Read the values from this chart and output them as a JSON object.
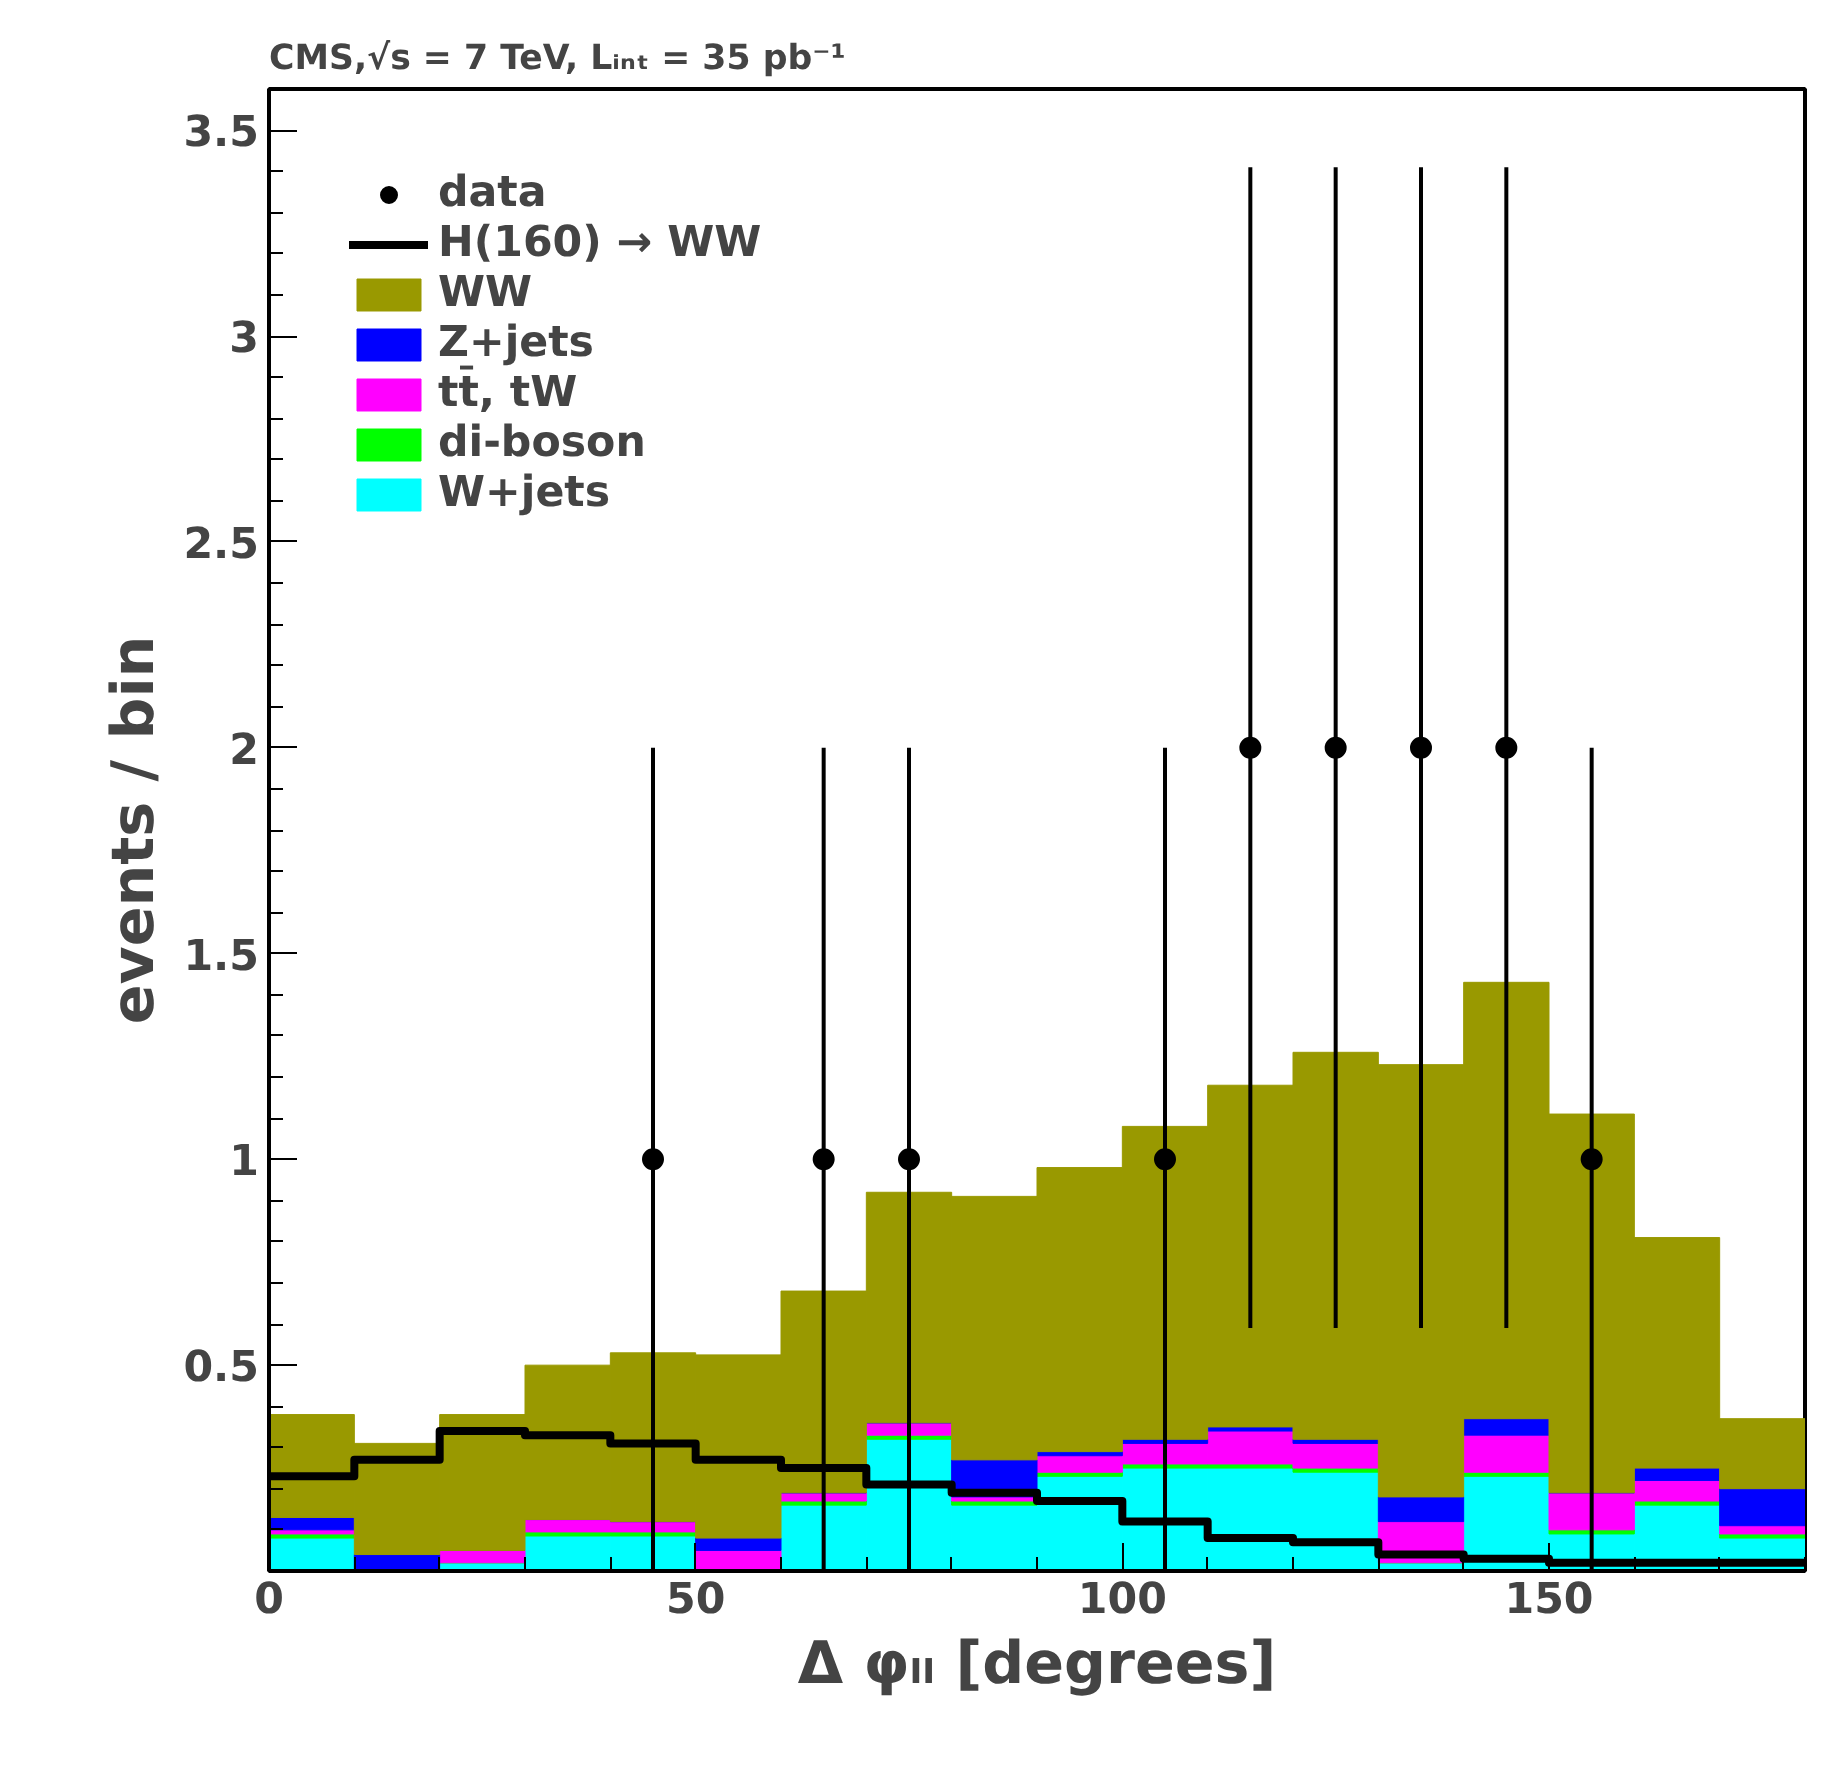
{
  "chart_data": {
    "type": "bar",
    "title": "CMS,√s = 7 TeV, Lᵢₙₜ = 35 pb⁻¹",
    "xlabel": "Δ φₗₗ [degrees]",
    "ylabel": "events / bin",
    "x": [
      5,
      15,
      25,
      35,
      45,
      55,
      65,
      75,
      85,
      95,
      105,
      115,
      125,
      135,
      145,
      155,
      165,
      175
    ],
    "stacked": true,
    "series": [
      {
        "name": "W+jets",
        "color": "#00ffff",
        "values": [
          0.08,
          null,
          0.02,
          0.085,
          0.085,
          0,
          0.16,
          0.32,
          0.16,
          0.23,
          0.25,
          0.25,
          0.24,
          0.02,
          0.23,
          0.09,
          0.16,
          0.08
        ]
      },
      {
        "name": "di-boson",
        "color": "#00ff00",
        "values": [
          0.01,
          0,
          0,
          0.01,
          0.01,
          0,
          0.01,
          0.01,
          0.01,
          0.01,
          0.01,
          0.01,
          0.01,
          0,
          0.01,
          0.01,
          0.01,
          0.01
        ]
      },
      {
        "name": "tt̄, tW",
        "color": "#ff00ff",
        "values": [
          0.01,
          0,
          0.03,
          0.03,
          0.025,
          0.05,
          0.02,
          0.03,
          0.01,
          0.04,
          0.05,
          0.08,
          0.06,
          0.1,
          0.09,
          0.09,
          0.05,
          0.02
        ]
      },
      {
        "name": "Z+jets",
        "color": "#0000ff",
        "values": [
          0.03,
          0.04,
          0,
          0,
          0,
          0.03,
          0,
          0,
          0.09,
          0.01,
          0.01,
          0.01,
          0.01,
          0.06,
          0.04,
          0,
          0.03,
          0.09
        ]
      },
      {
        "name": "WW",
        "color": "#999900",
        "values": [
          0.25,
          0.27,
          0.33,
          0.375,
          0.41,
          0.445,
          0.49,
          0.56,
          0.64,
          0.69,
          0.76,
          0.83,
          0.94,
          1.05,
          1.06,
          0.92,
          0.56,
          0.17
        ]
      },
      {
        "name": "H(160) → WW",
        "type": "step",
        "color": "#000000",
        "x": [
          0,
          10,
          20,
          30,
          40,
          50,
          60,
          70,
          80,
          90,
          100,
          110,
          120,
          130,
          140,
          150,
          160,
          170,
          180
        ],
        "values": [
          0.23,
          0.27,
          0.34,
          0.33,
          0.31,
          0.27,
          0.25,
          0.21,
          0.19,
          0.17,
          0.12,
          0.08,
          0.07,
          0.04,
          0.03,
          0.02,
          0.02,
          0.02,
          0.02
        ]
      },
      {
        "name": "data",
        "type": "scatter",
        "marker": "circle",
        "color": "#000000",
        "x": [
          45,
          65,
          75,
          105,
          115,
          125,
          135,
          145,
          155
        ],
        "values": [
          1,
          1,
          1,
          1,
          2,
          2,
          2,
          2,
          1
        ],
        "errors": [
          1,
          1,
          1,
          1,
          1.41,
          1.41,
          1.41,
          1.41,
          1
        ]
      }
    ],
    "xlim": [
      0,
      180
    ],
    "xticks": [
      0,
      50,
      100,
      150
    ],
    "ylim": [
      0,
      3.6
    ],
    "yticks": [
      0.5,
      1,
      1.5,
      2,
      2.5,
      3,
      3.5
    ],
    "legend": "top left",
    "grid": false
  }
}
